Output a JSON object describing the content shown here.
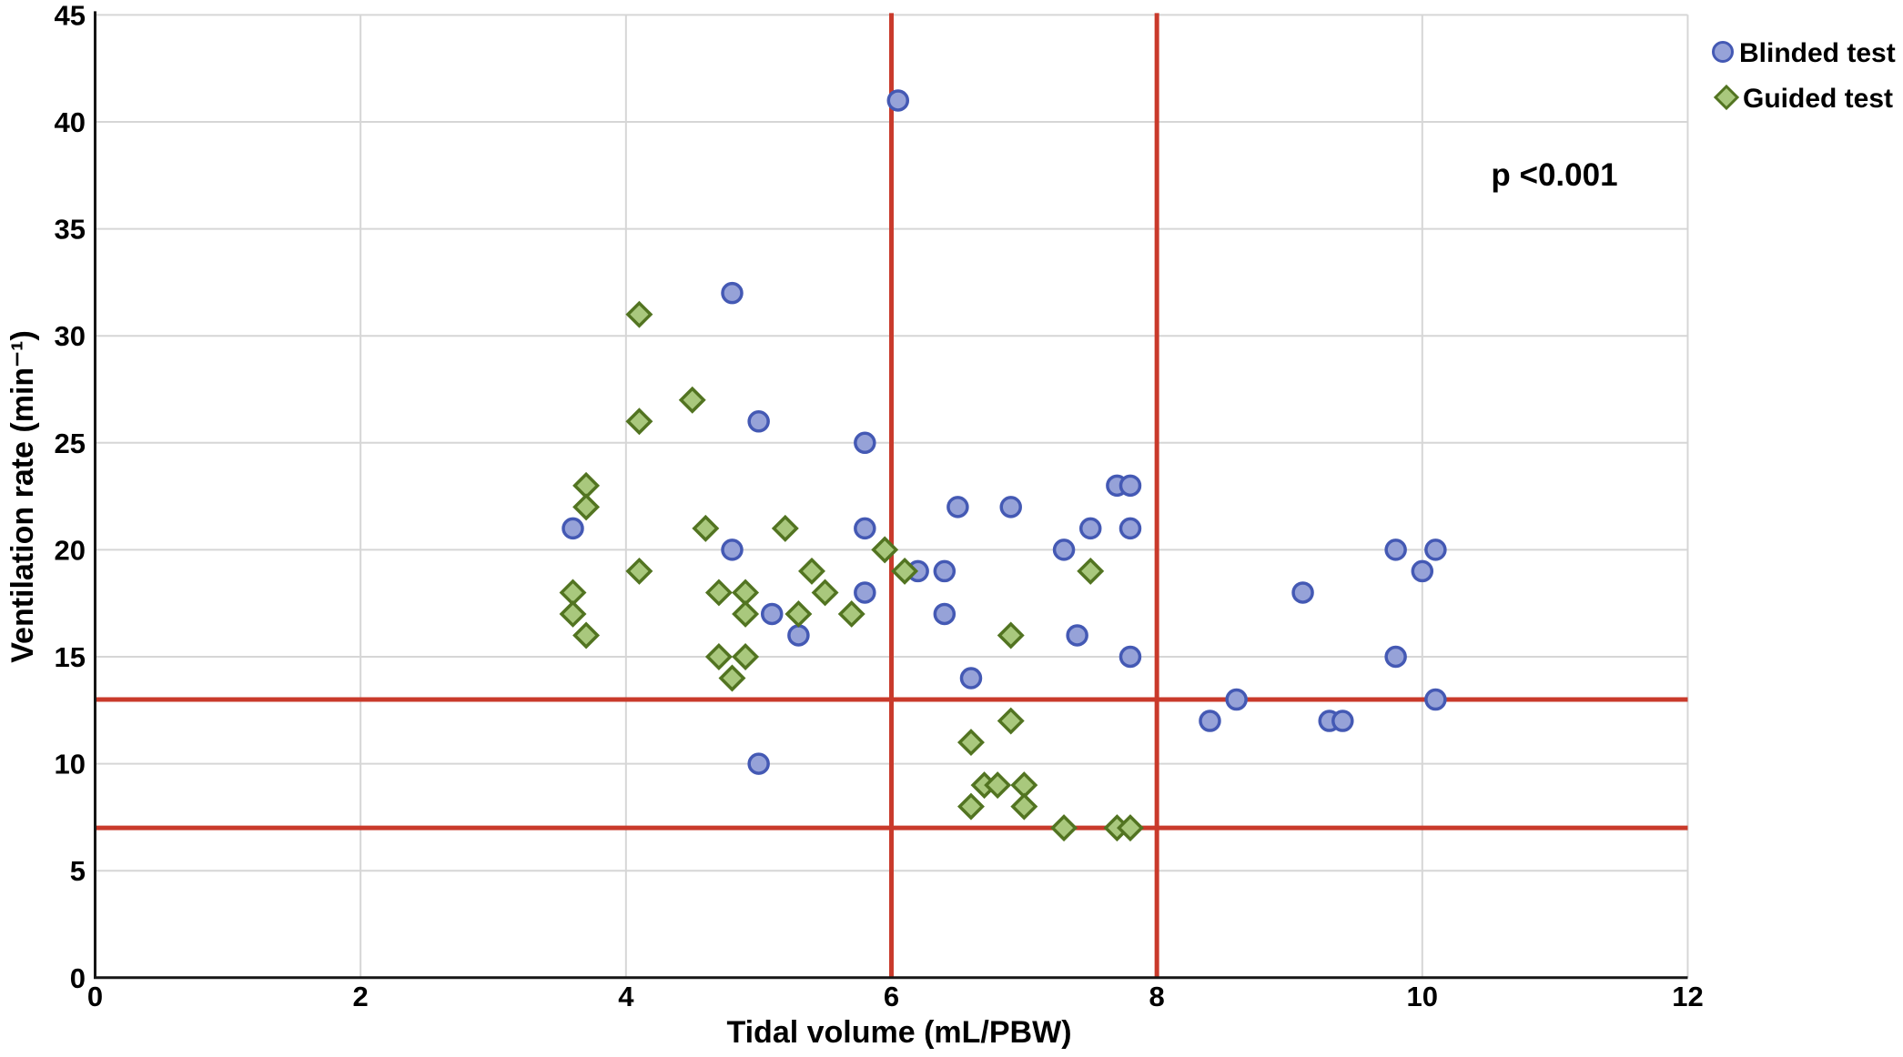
{
  "chart_data": {
    "type": "scatter",
    "title": "",
    "xlabel": "Tidal volume (mL/PBW)",
    "ylabel": "Ventilation rate (min⁻¹)",
    "xlim": [
      0,
      12
    ],
    "ylim": [
      0,
      45
    ],
    "x_ticks": [
      0,
      2,
      4,
      6,
      8,
      10,
      12
    ],
    "y_ticks": [
      0,
      5,
      10,
      15,
      20,
      25,
      30,
      35,
      40,
      45
    ],
    "grid": true,
    "legend_position": "top-right-outside",
    "annotation": {
      "text": "p <0.001",
      "x": 11.0,
      "y": 37.5
    },
    "series": [
      {
        "name": "Blinded test",
        "marker": "circle",
        "fill": "#96A2D8",
        "stroke": "#4459B4",
        "points": [
          [
            6.05,
            41
          ],
          [
            4.8,
            32
          ],
          [
            5.0,
            26
          ],
          [
            5.8,
            25
          ],
          [
            3.6,
            21
          ],
          [
            5.8,
            21
          ],
          [
            4.8,
            20
          ],
          [
            5.8,
            18
          ],
          [
            5.1,
            17
          ],
          [
            5.3,
            16
          ],
          [
            5.0,
            10
          ],
          [
            6.2,
            19
          ],
          [
            6.4,
            19
          ],
          [
            6.5,
            22
          ],
          [
            6.9,
            22
          ],
          [
            6.4,
            17
          ],
          [
            6.6,
            14
          ],
          [
            7.3,
            20
          ],
          [
            7.5,
            21
          ],
          [
            7.8,
            21
          ],
          [
            7.7,
            23
          ],
          [
            7.8,
            23
          ],
          [
            7.4,
            16
          ],
          [
            7.8,
            15
          ],
          [
            8.4,
            12
          ],
          [
            8.6,
            13
          ],
          [
            9.1,
            18
          ],
          [
            9.3,
            12
          ],
          [
            9.4,
            12
          ],
          [
            9.8,
            20
          ],
          [
            10.1,
            20
          ],
          [
            10.0,
            19
          ],
          [
            9.8,
            15
          ],
          [
            10.1,
            13
          ]
        ]
      },
      {
        "name": "Guided test",
        "marker": "diamond",
        "fill": "#A9C87D",
        "stroke": "#527421",
        "points": [
          [
            4.1,
            31
          ],
          [
            4.5,
            27
          ],
          [
            4.1,
            26
          ],
          [
            3.7,
            23
          ],
          [
            3.7,
            22
          ],
          [
            3.6,
            18
          ],
          [
            3.6,
            17
          ],
          [
            3.7,
            16
          ],
          [
            4.1,
            19
          ],
          [
            4.6,
            21
          ],
          [
            5.2,
            21
          ],
          [
            4.7,
            18
          ],
          [
            4.9,
            18
          ],
          [
            4.9,
            17
          ],
          [
            5.3,
            17
          ],
          [
            5.4,
            19
          ],
          [
            5.5,
            18
          ],
          [
            5.7,
            17
          ],
          [
            4.7,
            15
          ],
          [
            4.9,
            15
          ],
          [
            4.8,
            14
          ],
          [
            5.95,
            20
          ],
          [
            6.1,
            19
          ],
          [
            7.5,
            19
          ],
          [
            6.9,
            16
          ],
          [
            6.9,
            12
          ],
          [
            6.6,
            11
          ],
          [
            6.6,
            8
          ],
          [
            6.7,
            9
          ],
          [
            6.8,
            9
          ],
          [
            7.0,
            9
          ],
          [
            7.0,
            8
          ],
          [
            7.3,
            7
          ],
          [
            7.7,
            7
          ],
          [
            7.8,
            7
          ]
        ]
      }
    ],
    "reference_lines": {
      "color": "#C93A2B",
      "vertical_x": [
        6,
        8
      ],
      "horizontal_y": [
        13,
        7
      ]
    }
  },
  "colors": {
    "background": "#FFFFFF",
    "gridline": "#D6D6D6",
    "axis": "#161616",
    "text": "#000000",
    "reference_line": "#C93A2B",
    "blinded_fill": "#96A2D8",
    "blinded_stroke": "#4459B4",
    "guided_fill": "#A9C87D",
    "guided_stroke": "#527421"
  }
}
